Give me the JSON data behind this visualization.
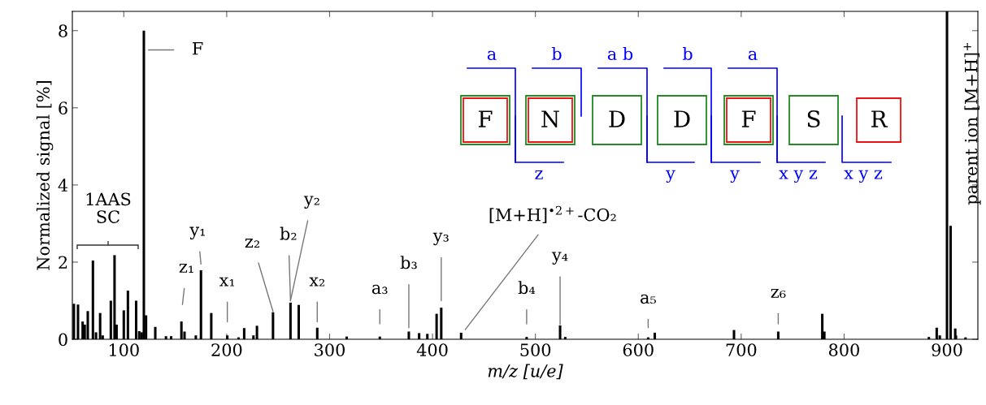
{
  "chart_data": {
    "type": "bar",
    "xlabel": "m/z [u/e]",
    "ylabel": "Normalized signal [%]",
    "color": "#000000",
    "x": [
      51.5,
      55.5,
      60,
      62,
      65,
      70,
      73,
      77,
      79.5,
      87.4,
      91,
      93,
      100,
      104,
      112,
      115,
      117.4,
      119.5,
      121.6,
      130.6,
      141,
      146,
      156,
      159,
      170,
      175,
      185,
      200.6,
      211.5,
      217,
      226,
      229.4,
      245,
      262,
      270,
      288,
      316.6,
      348.8,
      377,
      387,
      395,
      404,
      408.5,
      427.8,
      491.5,
      524,
      529,
      609.6,
      616,
      693,
      736,
      778.8,
      780.8,
      882.4,
      890,
      893,
      900,
      903.5,
      908,
      908.7,
      918
    ],
    "values": [
      0.92,
      0.9,
      0.46,
      0.38,
      0.73,
      2.04,
      0.18,
      0.68,
      0.1,
      1.0,
      2.18,
      0.38,
      0.75,
      1.26,
      1.0,
      0.21,
      0.18,
      8.0,
      0.62,
      0.32,
      0.08,
      0.08,
      0.46,
      0.2,
      0.1,
      1.79,
      0.68,
      0.1,
      0.05,
      0.29,
      0.1,
      0.35,
      0.7,
      0.95,
      0.89,
      0.3,
      0.07,
      0.07,
      0.2,
      0.16,
      0.14,
      0.66,
      0.82,
      0.17,
      0.06,
      0.36,
      0.06,
      0.05,
      0.17,
      0.24,
      0.2,
      0.66,
      0.2,
      0.06,
      0.3,
      0.1,
      8.5,
      2.94,
      0.28,
      0.1,
      0.05
    ],
    "xlim": [
      50,
      930
    ],
    "ylim": [
      0,
      8.5
    ],
    "xticks": [
      100,
      200,
      300,
      400,
      500,
      600,
      700,
      800,
      900
    ],
    "yticks": [
      0,
      2,
      4,
      6,
      8
    ],
    "grid": false,
    "annotations": [
      {
        "text": "F",
        "x": 119.5,
        "y": 8.0
      },
      {
        "text": "z₁",
        "x": 157,
        "y": 0.46
      },
      {
        "text": "y₁",
        "x": 175,
        "y": 1.79
      },
      {
        "text": "x₁",
        "x": 200.6,
        "y": 0.1
      },
      {
        "text": "z₂",
        "x": 245,
        "y": 0.7
      },
      {
        "text": "b₂",
        "x": 262,
        "y": 0.95
      },
      {
        "text": "y₂",
        "x": 262,
        "y": 0.95
      },
      {
        "text": "x₂",
        "x": 288,
        "y": 0.3
      },
      {
        "text": "a₃",
        "x": 348.8,
        "y": 0.07
      },
      {
        "text": "b₃",
        "x": 377,
        "y": 0.2
      },
      {
        "text": "y₃",
        "x": 408.5,
        "y": 0.82
      },
      {
        "text": "[M+H]$^{•2+}$-CO₂",
        "x": 427.8,
        "y": 0.17
      },
      {
        "text": "b₄",
        "x": 491.5,
        "y": 0.06
      },
      {
        "text": "y₄",
        "x": 524,
        "y": 0.36
      },
      {
        "text": "a₅",
        "x": 609.6,
        "y": 0.03
      },
      {
        "text": "z₆",
        "x": 736,
        "y": 0.2
      },
      {
        "text": "parent ion [M+H]$^{+}$",
        "x": 900,
        "y": 8.5
      },
      "1AAS\nSC",
      "F",
      "N",
      "D",
      "D",
      "F",
      "S",
      "R",
      "a",
      "b",
      "a b",
      "b",
      "a",
      "z",
      "y",
      "y",
      "x y z",
      "x y z"
    ]
  }
}
